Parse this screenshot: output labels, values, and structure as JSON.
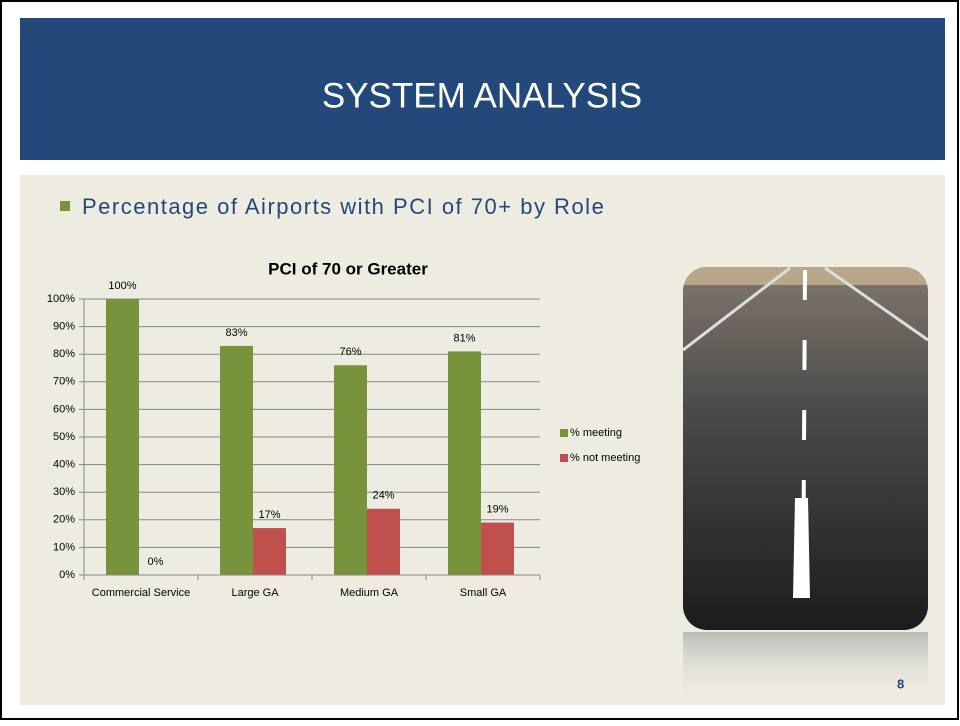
{
  "slide": {
    "title": "SYSTEM ANALYSIS",
    "bullet": "Percentage of Airports with PCI of 70+ by Role",
    "page_number": "8"
  },
  "chart_data": {
    "type": "bar",
    "title": "PCI of 70 or Greater",
    "categories": [
      "Commercial Service",
      "Large GA",
      "Medium GA",
      "Small GA"
    ],
    "series": [
      {
        "name": "% meeting",
        "color": "#77933c",
        "values": [
          100,
          83,
          76,
          81
        ],
        "value_labels": [
          "100%",
          "83%",
          "76%",
          "81%"
        ]
      },
      {
        "name": "% not meeting",
        "color": "#c0504d",
        "values": [
          0,
          17,
          24,
          19
        ],
        "value_labels": [
          "0%",
          "17%",
          "24%",
          "19%"
        ]
      }
    ],
    "ylim": [
      0,
      100
    ],
    "yticks": [
      {
        "value": 0,
        "label": "0%"
      },
      {
        "value": 10,
        "label": "10%"
      },
      {
        "value": 20,
        "label": "20%"
      },
      {
        "value": 30,
        "label": "30%"
      },
      {
        "value": 40,
        "label": "40%"
      },
      {
        "value": 50,
        "label": "50%"
      },
      {
        "value": 60,
        "label": "60%"
      },
      {
        "value": 70,
        "label": "70%"
      },
      {
        "value": 80,
        "label": "80%"
      },
      {
        "value": 90,
        "label": "90%"
      },
      {
        "value": 100,
        "label": "100%"
      }
    ],
    "grid": true,
    "legend": "right"
  }
}
